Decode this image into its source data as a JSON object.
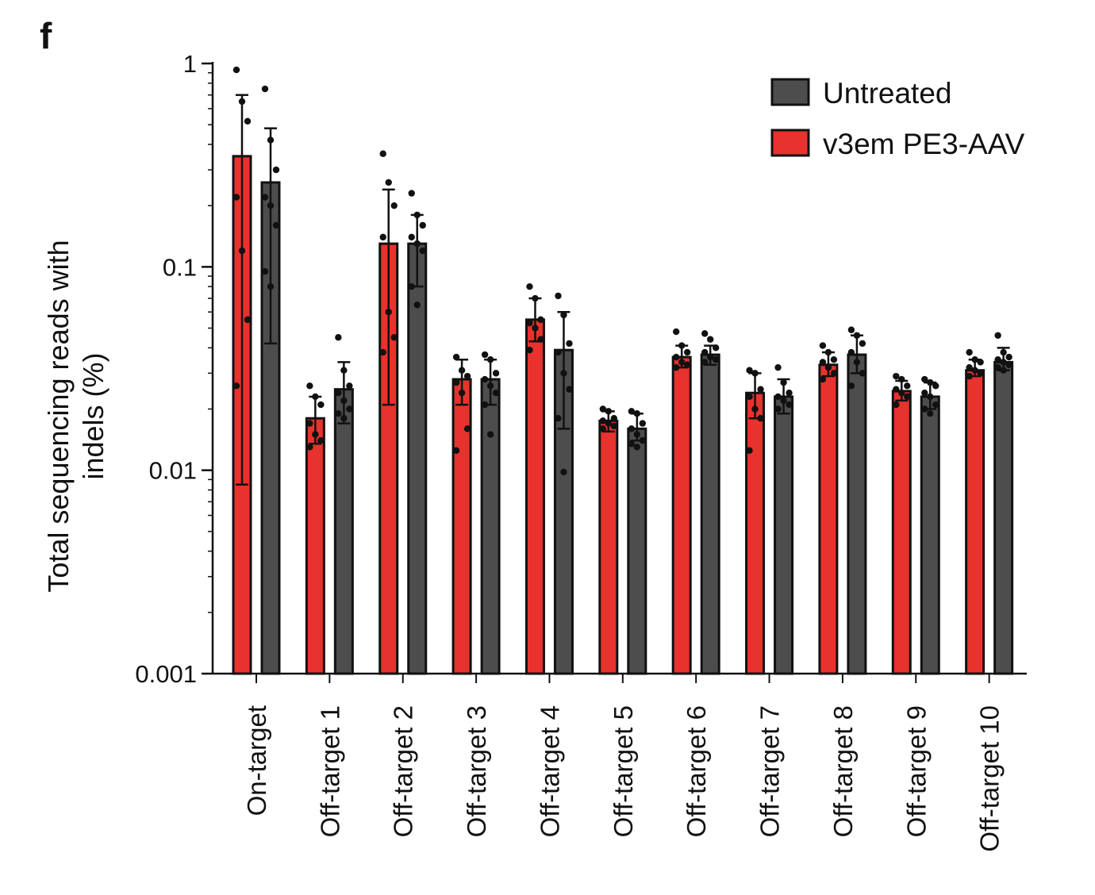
{
  "panel_label": "f",
  "chart_data": {
    "type": "bar",
    "scale": "log",
    "ylim": [
      0.001,
      1
    ],
    "yticks": [
      {
        "value": 0.001,
        "label": "0.001"
      },
      {
        "value": 0.01,
        "label": "0.01"
      },
      {
        "value": 0.1,
        "label": "0.1"
      },
      {
        "value": 1,
        "label": "1"
      }
    ],
    "ylabel_lines": [
      "Total sequencing reads with",
      "indels (%)"
    ],
    "legend_position": "top-right",
    "categories": [
      "On-target",
      "Off-target 1",
      "Off-target 2",
      "Off-target 3",
      "Off-target 4",
      "Off-target 5",
      "Off-target 6",
      "Off-target 7",
      "Off-target 8",
      "Off-target 9",
      "Off-target 10"
    ],
    "series": [
      {
        "name": "v3em PE3-AAV",
        "color": "#e8322d",
        "values": [
          0.35,
          0.018,
          0.13,
          0.028,
          0.055,
          0.0175,
          0.036,
          0.024,
          0.033,
          0.0245,
          0.031
        ],
        "error_low": [
          0.0085,
          0.0135,
          0.021,
          0.021,
          0.043,
          0.0155,
          0.032,
          0.018,
          0.029,
          0.022,
          0.029
        ],
        "error_high": [
          0.7,
          0.023,
          0.24,
          0.035,
          0.07,
          0.0195,
          0.041,
          0.03,
          0.038,
          0.0275,
          0.035
        ],
        "points": [
          [
            0.93,
            0.65,
            0.52,
            0.22,
            0.12,
            0.055,
            0.026
          ],
          [
            0.026,
            0.023,
            0.021,
            0.017,
            0.015,
            0.014,
            0.013
          ],
          [
            0.36,
            0.26,
            0.2,
            0.14,
            0.06,
            0.045,
            0.038
          ],
          [
            0.036,
            0.031,
            0.029,
            0.027,
            0.024,
            0.016,
            0.0125
          ],
          [
            0.08,
            0.07,
            0.055,
            0.053,
            0.05,
            0.044,
            0.039
          ],
          [
            0.02,
            0.0195,
            0.018,
            0.0175,
            0.017,
            0.0165,
            0.016
          ],
          [
            0.048,
            0.041,
            0.038,
            0.036,
            0.034,
            0.033,
            0.032
          ],
          [
            0.031,
            0.03,
            0.025,
            0.023,
            0.02,
            0.018,
            0.0125
          ],
          [
            0.041,
            0.038,
            0.035,
            0.034,
            0.032,
            0.03,
            0.028
          ],
          [
            0.029,
            0.028,
            0.026,
            0.025,
            0.024,
            0.023,
            0.021
          ],
          [
            0.038,
            0.035,
            0.034,
            0.032,
            0.031,
            0.03,
            0.029
          ]
        ]
      },
      {
        "name": "Untreated",
        "color": "#4d4d4d",
        "values": [
          0.26,
          0.025,
          0.13,
          0.028,
          0.039,
          0.016,
          0.037,
          0.023,
          0.037,
          0.023,
          0.034
        ],
        "error_low": [
          0.042,
          0.017,
          0.08,
          0.021,
          0.016,
          0.014,
          0.033,
          0.019,
          0.03,
          0.02,
          0.031
        ],
        "error_high": [
          0.48,
          0.034,
          0.18,
          0.035,
          0.06,
          0.019,
          0.041,
          0.028,
          0.046,
          0.027,
          0.04
        ],
        "points": [
          [
            0.75,
            0.42,
            0.3,
            0.22,
            0.2,
            0.16,
            0.095,
            0.08
          ],
          [
            0.045,
            0.031,
            0.026,
            0.024,
            0.022,
            0.02,
            0.019,
            0.018
          ],
          [
            0.23,
            0.18,
            0.16,
            0.14,
            0.13,
            0.12,
            0.08,
            0.065
          ],
          [
            0.037,
            0.035,
            0.03,
            0.028,
            0.026,
            0.024,
            0.021,
            0.015
          ],
          [
            0.072,
            0.058,
            0.042,
            0.038,
            0.03,
            0.025,
            0.018,
            0.0098
          ],
          [
            0.0195,
            0.019,
            0.017,
            0.016,
            0.015,
            0.014,
            0.0135,
            0.013
          ],
          [
            0.047,
            0.044,
            0.04,
            0.038,
            0.036,
            0.035,
            0.034
          ],
          [
            0.032,
            0.027,
            0.024,
            0.023,
            0.022,
            0.021,
            0.02
          ],
          [
            0.049,
            0.046,
            0.042,
            0.038,
            0.034,
            0.03,
            0.026
          ],
          [
            0.028,
            0.027,
            0.026,
            0.024,
            0.023,
            0.021,
            0.02,
            0.019
          ],
          [
            0.046,
            0.038,
            0.036,
            0.035,
            0.034,
            0.033,
            0.032,
            0.031
          ]
        ]
      }
    ]
  }
}
